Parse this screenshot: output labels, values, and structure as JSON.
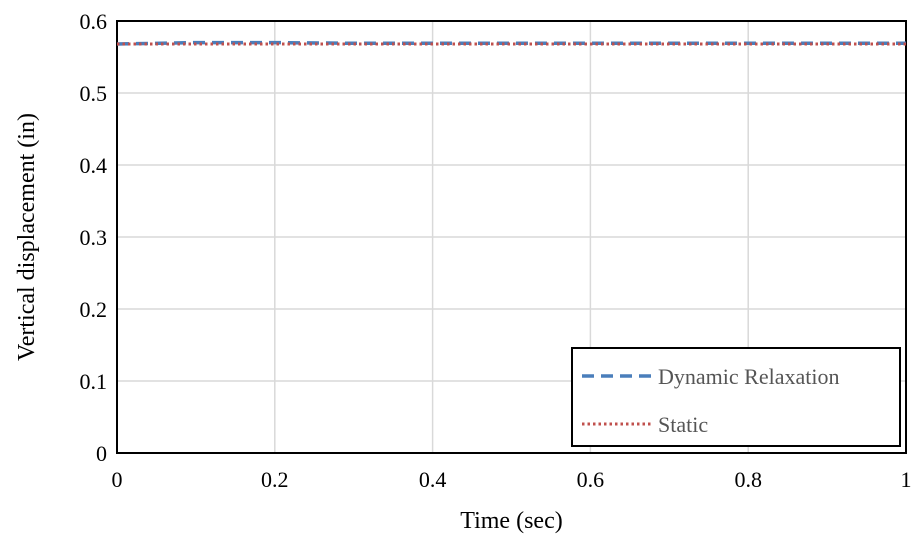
{
  "chart_data": {
    "type": "line",
    "title": "",
    "xlabel": "Time (sec)",
    "ylabel": "Vertical displacement (in)",
    "xlim": [
      0,
      1
    ],
    "ylim": [
      0,
      0.6
    ],
    "xticks": [
      "0",
      "0.2",
      "0.4",
      "0.6",
      "0.8",
      "1"
    ],
    "yticks": [
      "0",
      "0.1",
      "0.2",
      "0.3",
      "0.4",
      "0.5",
      "0.6"
    ],
    "grid": true,
    "legend_position": "bottom-right",
    "series": [
      {
        "name": "Dynamic Relaxation",
        "style": "dashed",
        "color": "#4a7ebb",
        "x": [
          0,
          0.1,
          0.2,
          0.3,
          0.4,
          0.5,
          0.6,
          0.7,
          0.8,
          0.9,
          1
        ],
        "y": [
          0.568,
          0.57,
          0.57,
          0.569,
          0.569,
          0.569,
          0.569,
          0.569,
          0.569,
          0.569,
          0.569
        ]
      },
      {
        "name": "Static",
        "style": "dotted",
        "color": "#c0504d",
        "x": [
          0,
          1
        ],
        "y": [
          0.568,
          0.568
        ]
      }
    ]
  }
}
